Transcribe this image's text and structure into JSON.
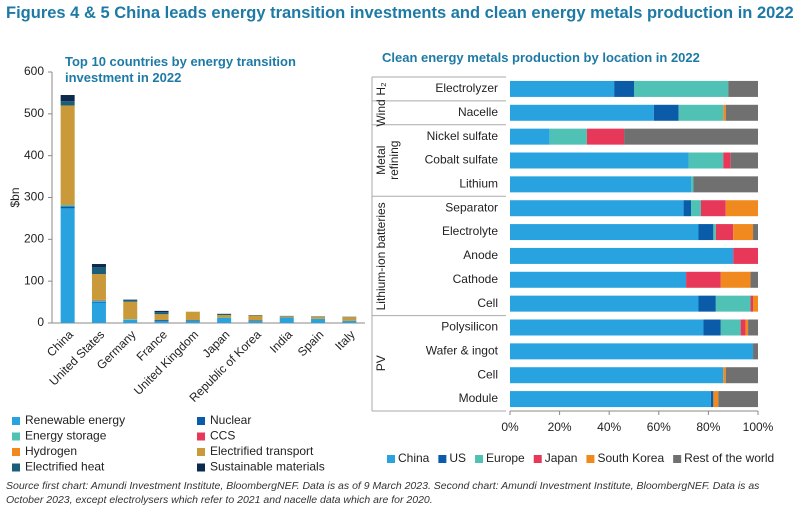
{
  "title": "Figures 4 & 5 China leads energy transition investments and clean energy metals production in 2022",
  "source": "Source first chart: Amundi Investment Institute, BloombergNEF. Data is as of 9 March 2023. Second chart: Amundi Investment Institute, BloombergNEF. Data is as October 2023, except electrolysers which refer to 2021 and nacelle data which are for 2020.",
  "chart_data": [
    {
      "type": "bar",
      "stacked": true,
      "orientation": "vertical",
      "title": "Top 10 countries by energy transition investment in 2022",
      "y_label": "$bn",
      "categories": [
        "China",
        "United States",
        "Germany",
        "France",
        "United Kingdom",
        "Japan",
        "Republic of Korea",
        "India",
        "Spain",
        "Italy"
      ],
      "series": [
        {
          "name": "Renewable energy",
          "color": "#29a3df",
          "values": [
            274,
            49,
            8,
            4,
            4,
            12,
            5,
            13,
            10,
            5
          ]
        },
        {
          "name": "Nuclear",
          "color": "#0a5ca8",
          "values": [
            5,
            2,
            0,
            3,
            2,
            0,
            1,
            0,
            0,
            0
          ]
        },
        {
          "name": "Energy storage",
          "color": "#4fc1b5",
          "values": [
            3,
            3,
            1,
            0,
            1,
            1,
            0,
            0,
            0,
            0
          ]
        },
        {
          "name": "CCS",
          "color": "#e8385a",
          "values": [
            0,
            1,
            0,
            0,
            0,
            0,
            0,
            0,
            0,
            0
          ]
        },
        {
          "name": "Hydrogen",
          "color": "#f08a1e",
          "values": [
            0,
            1,
            0,
            0,
            0,
            0,
            0,
            0,
            0,
            0
          ]
        },
        {
          "name": "Electrified transport",
          "color": "#c9993a",
          "values": [
            238,
            61,
            42,
            14,
            20,
            6,
            12,
            3,
            5,
            9
          ]
        },
        {
          "name": "Electrified heat",
          "color": "#1b5e7a",
          "values": [
            10,
            16,
            5,
            5,
            0,
            3,
            1,
            1,
            1,
            1
          ]
        },
        {
          "name": "Sustainable materials",
          "color": "#0b2a4e",
          "values": [
            15,
            8,
            0,
            3,
            0,
            0,
            0,
            0,
            0,
            0
          ]
        }
      ],
      "ylim": [
        0,
        600
      ],
      "yticks": [
        0,
        100,
        200,
        300,
        400,
        500,
        600
      ],
      "grid": false
    },
    {
      "type": "bar",
      "stacked": true,
      "orientation": "horizontal",
      "title": "Clean energy metals production by location in 2022",
      "categories": [
        "Electrolyzer",
        "Nacelle",
        "Nickel sulfate",
        "Cobalt sulfate",
        "Lithium",
        "Separator",
        "Electrolyte",
        "Anode",
        "Cathode",
        "Cell",
        "Polysilicon",
        "Wafer & ingot",
        "Cell",
        "Module"
      ],
      "groups": [
        {
          "label": "H₂",
          "size": 1
        },
        {
          "label": "Wind",
          "size": 1
        },
        {
          "label": "Metal refining",
          "size": 3
        },
        {
          "label": "Lithium-ion batteries",
          "size": 5
        },
        {
          "label": "PV",
          "size": 4
        }
      ],
      "series": [
        {
          "name": "China",
          "color": "#29a3df",
          "values": [
            42,
            58,
            16,
            72,
            73,
            70,
            76,
            90,
            71,
            76,
            78,
            98,
            86,
            81
          ]
        },
        {
          "name": "US",
          "color": "#0a5ca8",
          "values": [
            8,
            10,
            0,
            0,
            0,
            3,
            6,
            0,
            0,
            7,
            7,
            0,
            0,
            1
          ]
        },
        {
          "name": "Europe",
          "color": "#4fc1b5",
          "values": [
            38,
            18,
            15,
            14,
            1,
            4,
            1,
            0,
            0,
            14,
            8,
            0,
            0,
            0
          ]
        },
        {
          "name": "Japan",
          "color": "#e8385a",
          "values": [
            0,
            0,
            15,
            3,
            0,
            10,
            7,
            10,
            14,
            1,
            2,
            0,
            0,
            0
          ]
        },
        {
          "name": "South Korea",
          "color": "#f08a1e",
          "values": [
            0,
            1,
            0,
            0,
            0,
            13,
            8,
            0,
            12,
            2,
            1,
            0,
            1,
            2
          ]
        },
        {
          "name": "Rest of the world",
          "color": "#707070",
          "values": [
            12,
            13,
            54,
            11,
            26,
            0,
            2,
            0,
            3,
            0,
            4,
            2,
            13,
            16
          ]
        }
      ],
      "xlim": [
        0,
        100
      ],
      "xticks": [
        {
          "value": 0,
          "label": "0%"
        },
        {
          "value": 20,
          "label": "20%"
        },
        {
          "value": 40,
          "label": "40%"
        },
        {
          "value": 60,
          "label": "60%"
        },
        {
          "value": 80,
          "label": "80%"
        },
        {
          "value": 100,
          "label": "100%"
        }
      ],
      "grid": false
    }
  ]
}
